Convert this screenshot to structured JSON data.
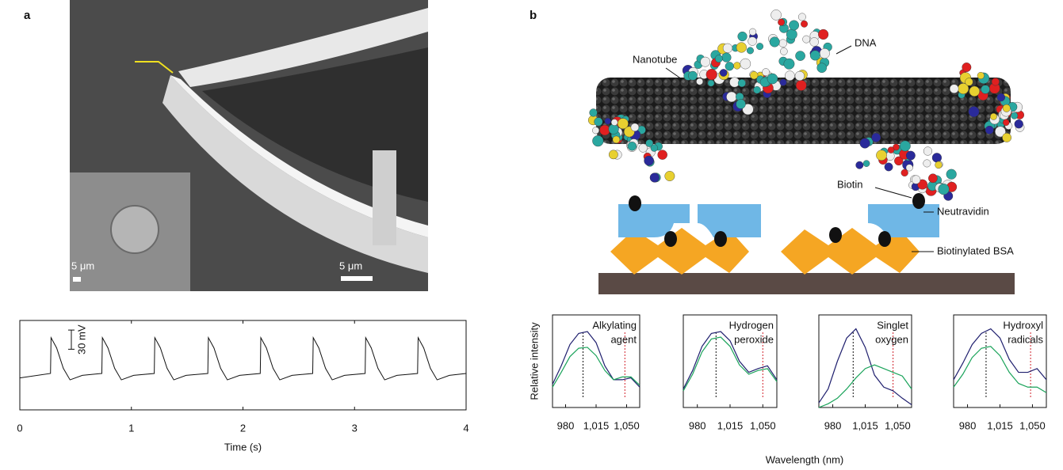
{
  "panel_labels": [
    "a",
    "b"
  ],
  "image_a": {
    "scale_bars": [
      "5 μm",
      "5 μm"
    ]
  },
  "illustration_b": {
    "labels": [
      "Nanotube",
      "DNA",
      "Biotin",
      "Neutravidin",
      "Biotinylated BSA"
    ]
  },
  "chart_data": [
    {
      "type": "line",
      "xlabel": "Time (s)",
      "color": "#111111",
      "x": [
        0,
        0.275,
        0.28,
        0.33,
        0.39,
        0.45,
        0.56,
        0.735,
        0.74,
        0.79,
        0.85,
        0.91,
        1.02,
        1.205,
        1.21,
        1.26,
        1.32,
        1.38,
        1.49,
        1.685,
        1.69,
        1.74,
        1.8,
        1.86,
        1.97,
        2.155,
        2.16,
        2.21,
        2.27,
        2.33,
        2.44,
        2.625,
        2.63,
        2.68,
        2.74,
        2.8,
        2.91,
        3.095,
        3.1,
        3.15,
        3.21,
        3.27,
        3.38,
        3.565,
        3.57,
        3.62,
        3.68,
        3.74,
        3.85,
        4
      ],
      "values": [
        5,
        12,
        68,
        52,
        20,
        2,
        9,
        12,
        68,
        52,
        20,
        2,
        9,
        12,
        68,
        52,
        20,
        2,
        9,
        12,
        68,
        52,
        20,
        2,
        9,
        12,
        68,
        52,
        20,
        2,
        9,
        12,
        68,
        52,
        20,
        2,
        9,
        12,
        68,
        52,
        20,
        2,
        9,
        12,
        68,
        52,
        20,
        2,
        9,
        12
      ],
      "xlim": [
        0,
        4
      ],
      "ylim": [
        -45,
        95
      ],
      "xticks": [
        0,
        1,
        2,
        3,
        4
      ],
      "scale_bar": {
        "value": 30,
        "label": "30 mV"
      }
    },
    {
      "type": "line",
      "label": [
        "Alkylating",
        "agent"
      ],
      "ylabel": "Relative intensity",
      "xlabel": "Wavelength (nm)",
      "x": [
        965,
        975,
        985,
        995,
        1005,
        1015,
        1025,
        1035,
        1045,
        1055,
        1065
      ],
      "series": [
        {
          "color": "#1f1f6e",
          "values": [
            0.25,
            0.45,
            0.68,
            0.8,
            0.82,
            0.7,
            0.45,
            0.3,
            0.3,
            0.32,
            0.22
          ]
        },
        {
          "color": "#1aa35a",
          "values": [
            0.22,
            0.38,
            0.55,
            0.64,
            0.65,
            0.56,
            0.4,
            0.3,
            0.33,
            0.33,
            0.24
          ]
        }
      ],
      "peak_lines": [
        {
          "value": 1000,
          "color": "#111111"
        },
        {
          "value": 1048,
          "color": "#d0202a"
        }
      ],
      "xlim": [
        965,
        1065
      ],
      "ylim": [
        0,
        1
      ],
      "xticks": [
        980,
        {
          "value": 1015,
          "label": "1,015"
        },
        {
          "value": 1050,
          "label": "1,050"
        }
      ]
    },
    {
      "type": "line",
      "label": [
        "Hydrogen",
        "peroxide"
      ],
      "x": [
        965,
        975,
        985,
        995,
        1005,
        1015,
        1025,
        1035,
        1045,
        1055,
        1065
      ],
      "series": [
        {
          "color": "#1f1f6e",
          "values": [
            0.2,
            0.4,
            0.66,
            0.8,
            0.82,
            0.72,
            0.5,
            0.38,
            0.42,
            0.45,
            0.3
          ]
        },
        {
          "color": "#1aa35a",
          "values": [
            0.18,
            0.36,
            0.6,
            0.74,
            0.76,
            0.66,
            0.46,
            0.36,
            0.4,
            0.42,
            0.28
          ]
        }
      ],
      "peak_lines": [
        {
          "value": 1000,
          "color": "#111111"
        },
        {
          "value": 1050,
          "color": "#d0202a"
        }
      ],
      "xlim": [
        965,
        1065
      ],
      "ylim": [
        0,
        1
      ],
      "xticks": [
        980,
        {
          "value": 1015,
          "label": "1,015"
        },
        {
          "value": 1050,
          "label": "1,050"
        }
      ]
    },
    {
      "type": "line",
      "label": [
        "Singlet",
        "oxygen"
      ],
      "x": [
        965,
        975,
        985,
        995,
        1005,
        1015,
        1025,
        1035,
        1045,
        1055,
        1065
      ],
      "series": [
        {
          "color": "#1f1f6e",
          "values": [
            0.05,
            0.2,
            0.5,
            0.75,
            0.85,
            0.65,
            0.35,
            0.22,
            0.18,
            0.1,
            0.03
          ]
        },
        {
          "color": "#1aa35a",
          "values": [
            0.0,
            0.04,
            0.1,
            0.2,
            0.32,
            0.42,
            0.46,
            0.42,
            0.38,
            0.34,
            0.2
          ]
        }
      ],
      "peak_lines": [
        {
          "value": 1002,
          "color": "#111111"
        },
        {
          "value": 1045,
          "color": "#d0202a"
        }
      ],
      "xlim": [
        965,
        1065
      ],
      "ylim": [
        0,
        1
      ],
      "xticks": [
        980,
        {
          "value": 1015,
          "label": "1,015"
        },
        {
          "value": 1050,
          "label": "1,050"
        }
      ]
    },
    {
      "type": "line",
      "label": [
        "Hydroxyl",
        "radicals"
      ],
      "x": [
        965,
        975,
        985,
        995,
        1005,
        1015,
        1025,
        1035,
        1045,
        1055,
        1065
      ],
      "series": [
        {
          "color": "#1f1f6e",
          "values": [
            0.3,
            0.48,
            0.68,
            0.8,
            0.85,
            0.75,
            0.52,
            0.38,
            0.38,
            0.42,
            0.3
          ]
        },
        {
          "color": "#1aa35a",
          "values": [
            0.22,
            0.36,
            0.54,
            0.64,
            0.66,
            0.56,
            0.38,
            0.26,
            0.22,
            0.22,
            0.16
          ]
        }
      ],
      "peak_lines": [
        {
          "value": 1000,
          "color": "#111111"
        },
        {
          "value": 1048,
          "color": "#d0202a"
        }
      ],
      "xlim": [
        965,
        1065
      ],
      "ylim": [
        0,
        1
      ],
      "xticks": [
        980,
        {
          "value": 1015,
          "label": "1,015"
        },
        {
          "value": 1050,
          "label": "1,050"
        }
      ]
    }
  ]
}
